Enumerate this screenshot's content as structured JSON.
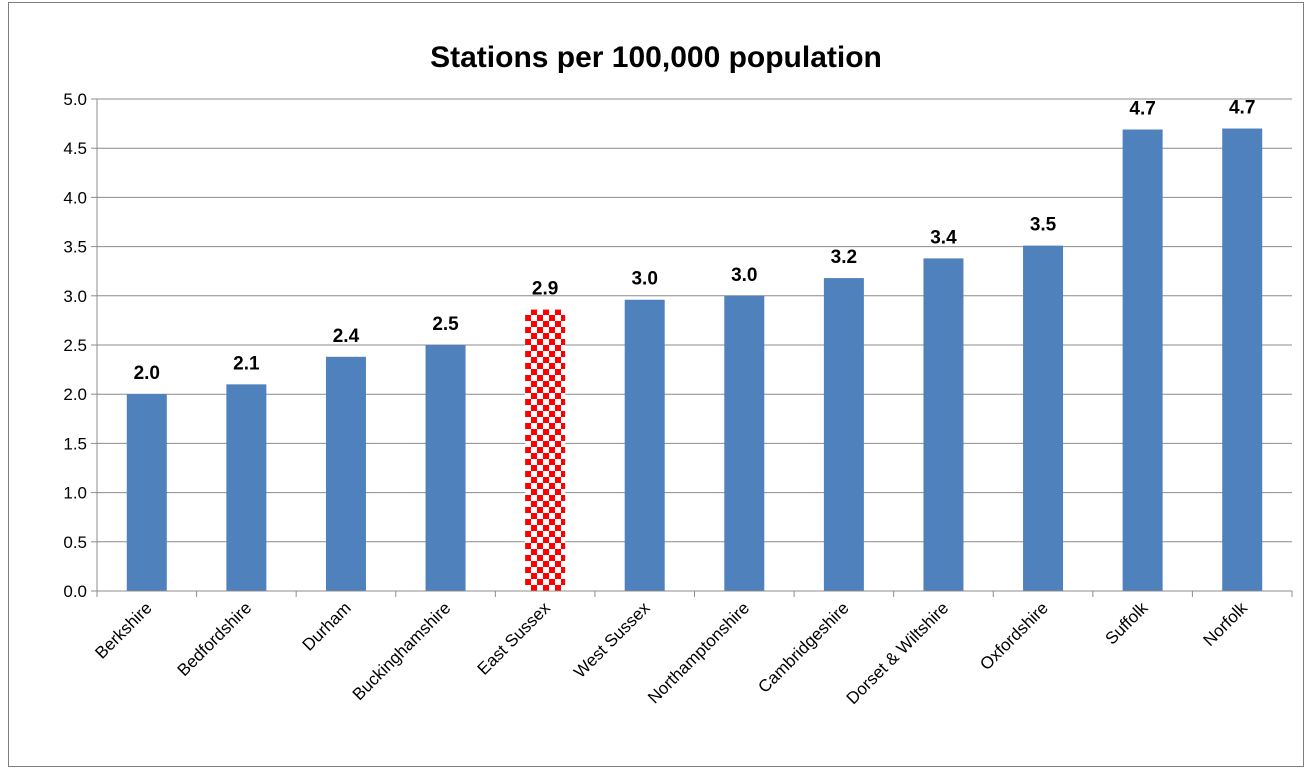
{
  "chart_data": {
    "type": "bar",
    "title": "Stations per 100,000 population",
    "xlabel": "",
    "ylabel": "",
    "ylim": [
      0,
      5.0
    ],
    "ytick_step": 0.5,
    "ytick_labels": [
      "0.0",
      "0.5",
      "1.0",
      "1.5",
      "2.0",
      "2.5",
      "3.0",
      "3.5",
      "4.0",
      "4.5",
      "5.0"
    ],
    "grid": true,
    "legend": "none",
    "categories": [
      "Berkshire",
      "Bedfordshire",
      "Durham",
      "Buckinghamshire",
      "East Sussex",
      "West Sussex",
      "Northamptonshire",
      "Cambridgeshire",
      "Dorset & Wiltshire",
      "Oxfordshire",
      "Suffolk",
      "Norfolk"
    ],
    "values": [
      2.0,
      2.1,
      2.38,
      2.5,
      2.86,
      2.96,
      3.0,
      3.18,
      3.38,
      3.51,
      4.69,
      4.7
    ],
    "data_labels": [
      "2.0",
      "2.1",
      "2.4",
      "2.5",
      "2.9",
      "3.0",
      "3.0",
      "3.2",
      "3.4",
      "3.5",
      "4.7",
      "4.7"
    ],
    "highlight_category": "East Sussex",
    "colors": {
      "bar": "#4f81bd",
      "highlight_a": "#ff0000",
      "highlight_b": "#ffffff",
      "grid": "#8c8c8c",
      "axis": "#8c8c8c",
      "frame": "#7f7f7f"
    }
  }
}
